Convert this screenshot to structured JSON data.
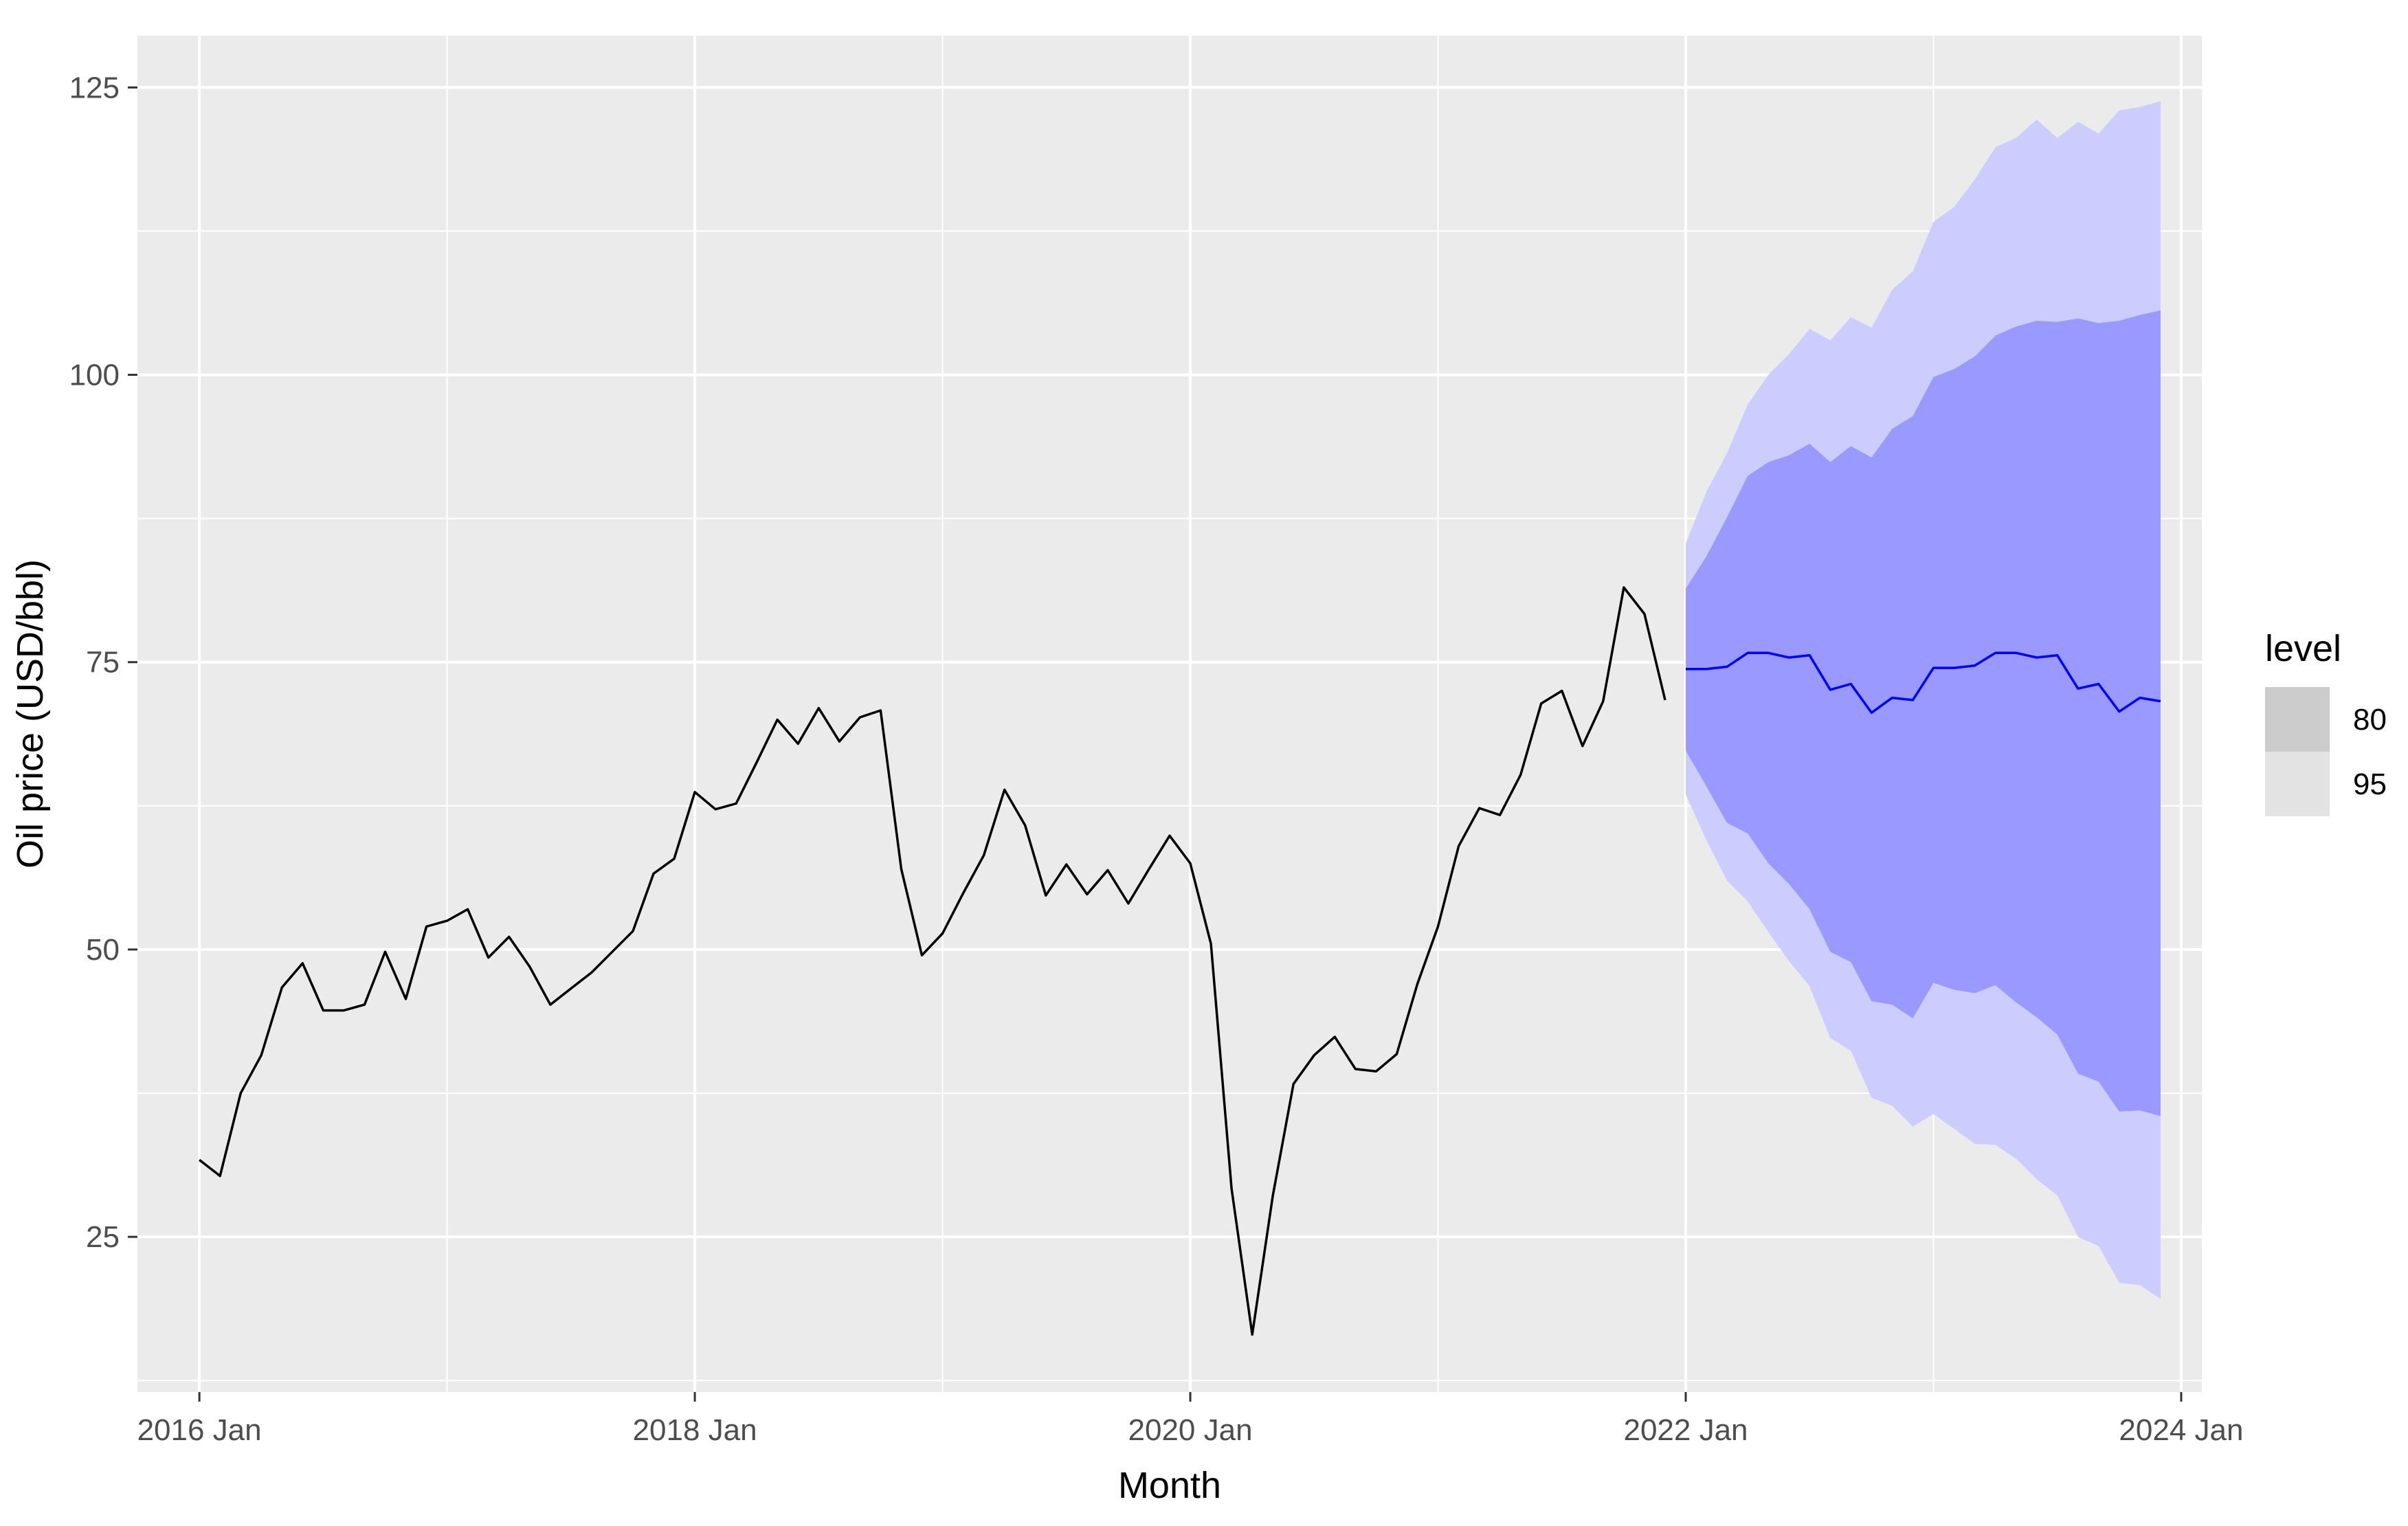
{
  "chart_data": {
    "type": "line",
    "title": "",
    "xlabel": "Month",
    "ylabel": "Oil price (USD/bbl)",
    "xlim": [
      "2015-10",
      "2024-02"
    ],
    "ylim": [
      11.5,
      129.5
    ],
    "grid": true,
    "background": "#EBEBEB",
    "x_ticks": [
      {
        "value": "2016-01",
        "label": "2016 Jan"
      },
      {
        "value": "2018-01",
        "label": "2018 Jan"
      },
      {
        "value": "2020-01",
        "label": "2020 Jan"
      },
      {
        "value": "2022-01",
        "label": "2022 Jan"
      },
      {
        "value": "2024-01",
        "label": "2024 Jan"
      }
    ],
    "y_ticks": [
      {
        "value": 25,
        "label": "25"
      },
      {
        "value": 50,
        "label": "50"
      },
      {
        "value": 75,
        "label": "75"
      },
      {
        "value": 100,
        "label": "100"
      },
      {
        "value": 125,
        "label": "125"
      }
    ],
    "legend": {
      "title": "level",
      "placement": "right",
      "items": [
        {
          "label": "80",
          "color": "#CCCCCC"
        },
        {
          "label": "95",
          "color": "#E3E3E3"
        }
      ]
    },
    "historical": {
      "color": "#000000",
      "x": [
        "2016-01",
        "2016-02",
        "2016-03",
        "2016-04",
        "2016-05",
        "2016-06",
        "2016-07",
        "2016-08",
        "2016-09",
        "2016-10",
        "2016-11",
        "2016-12",
        "2017-01",
        "2017-02",
        "2017-03",
        "2017-04",
        "2017-05",
        "2017-06",
        "2017-07",
        "2017-08",
        "2017-09",
        "2017-10",
        "2017-11",
        "2017-12",
        "2018-01",
        "2018-02",
        "2018-03",
        "2018-04",
        "2018-05",
        "2018-06",
        "2018-07",
        "2018-08",
        "2018-09",
        "2018-10",
        "2018-11",
        "2018-12",
        "2019-01",
        "2019-02",
        "2019-03",
        "2019-04",
        "2019-05",
        "2019-06",
        "2019-07",
        "2019-08",
        "2019-09",
        "2019-10",
        "2019-11",
        "2019-12",
        "2020-01",
        "2020-02",
        "2020-03",
        "2020-04",
        "2020-05",
        "2020-06",
        "2020-07",
        "2020-08",
        "2020-09",
        "2020-10",
        "2020-11",
        "2020-12",
        "2021-01",
        "2021-02",
        "2021-03",
        "2021-04",
        "2021-05",
        "2021-06",
        "2021-07",
        "2021-08",
        "2021-09",
        "2021-10",
        "2021-11",
        "2021-12"
      ],
      "y": [
        31.7,
        30.3,
        37.5,
        40.8,
        46.7,
        48.8,
        44.7,
        44.7,
        45.2,
        49.8,
        45.7,
        52.0,
        52.5,
        53.5,
        49.3,
        51.1,
        48.5,
        45.2,
        46.6,
        48.0,
        49.8,
        51.6,
        56.6,
        57.9,
        63.7,
        62.2,
        62.7,
        66.3,
        70.0,
        67.9,
        71.0,
        68.1,
        70.2,
        70.8,
        57.0,
        49.5,
        51.4,
        54.9,
        58.2,
        63.9,
        60.8,
        54.7,
        57.4,
        54.8,
        56.9,
        54.0,
        57.0,
        59.9,
        57.5,
        50.5,
        29.2,
        16.5,
        28.6,
        38.3,
        40.8,
        42.4,
        39.6,
        39.4,
        40.9,
        47.0,
        52.0,
        59.0,
        62.3,
        61.7,
        65.2,
        71.4,
        72.5,
        67.7,
        71.6,
        81.5,
        79.2,
        71.7
      ]
    },
    "forecast": {
      "color": "#0000FF",
      "x": [
        "2022-01",
        "2022-02",
        "2022-03",
        "2022-04",
        "2022-05",
        "2022-06",
        "2022-07",
        "2022-08",
        "2022-09",
        "2022-10",
        "2022-11",
        "2022-12",
        "2023-01",
        "2023-02",
        "2023-03",
        "2023-04",
        "2023-05",
        "2023-06",
        "2023-07",
        "2023-08",
        "2023-09",
        "2023-10",
        "2023-11",
        "2023-12"
      ],
      "mean": [
        74.4,
        74.4,
        74.6,
        75.8,
        75.8,
        75.4,
        75.6,
        72.6,
        73.1,
        70.6,
        71.9,
        71.7,
        74.5,
        74.5,
        74.7,
        75.8,
        75.8,
        75.4,
        75.6,
        72.7,
        73.1,
        70.7,
        71.9,
        71.6
      ],
      "bands": [
        {
          "level": "95",
          "color": "#CCCCFF",
          "lower": [
            63.5,
            59.5,
            56.0,
            54.2,
            51.5,
            49.0,
            46.8,
            42.3,
            41.2,
            37.1,
            36.4,
            34.6,
            35.7,
            34.4,
            33.1,
            33.0,
            31.8,
            30.0,
            28.6,
            25.0,
            24.2,
            21.0,
            20.8,
            19.6
          ],
          "upper": [
            85.3,
            89.8,
            93.2,
            97.4,
            100.0,
            101.8,
            104.0,
            103.0,
            105.0,
            104.1,
            107.4,
            109.0,
            113.3,
            114.6,
            117.0,
            119.8,
            120.6,
            122.2,
            120.6,
            122.0,
            121.0,
            123.0,
            123.3,
            123.8
          ]
        },
        {
          "level": "80",
          "color": "#9999FF",
          "lower": [
            67.3,
            64.2,
            61.0,
            60.1,
            57.5,
            55.7,
            53.5,
            49.8,
            48.9,
            45.5,
            45.2,
            44.0,
            47.1,
            46.5,
            46.2,
            46.9,
            45.4,
            44.1,
            42.6,
            39.2,
            38.5,
            35.9,
            36.0,
            35.5
          ],
          "upper": [
            81.4,
            84.2,
            87.6,
            91.2,
            92.4,
            93.0,
            94.0,
            92.4,
            93.8,
            92.8,
            95.3,
            96.4,
            99.8,
            100.5,
            101.6,
            103.4,
            104.2,
            104.7,
            104.6,
            104.9,
            104.5,
            104.7,
            105.2,
            105.6
          ]
        }
      ]
    }
  }
}
